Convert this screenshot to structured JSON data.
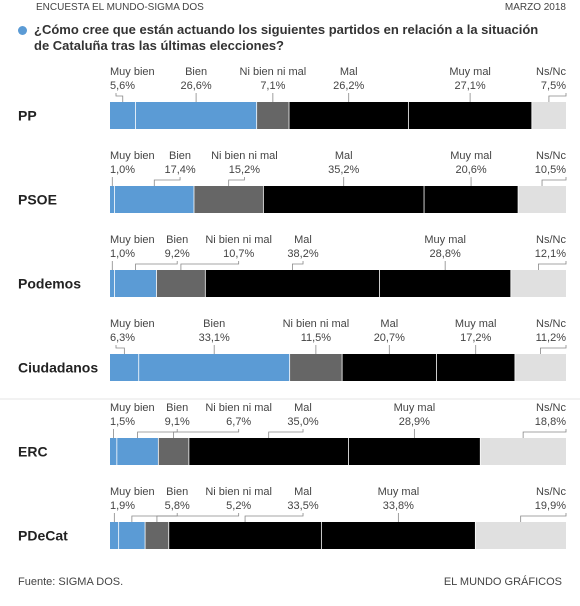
{
  "header": {
    "source_label": "ENCUESTA EL MUNDO-SIGMA DOS",
    "date": "MARZO 2018"
  },
  "question": {
    "line1": "¿Cómo cree que están actuando los siguientes partidos en relación a la situación",
    "line2": "de Cataluña tras las últimas elecciones?"
  },
  "footer": {
    "source": "Fuente: SIGMA DOS.",
    "credit": "EL MUNDO GRÁFICOS"
  },
  "colors": {
    "muy_bien": "#5b9bd5",
    "bien": "#5b9bd5",
    "ni_bien_ni_mal": "#666666",
    "mal": "#000000",
    "muy_mal": "#000000",
    "ns_nc": "#e0e0e0"
  },
  "chart_data": {
    "type": "bar",
    "stacked": true,
    "orientation": "horizontal",
    "categories": [
      "PP",
      "PSOE",
      "Podemos",
      "Ciudadanos",
      "ERC",
      "PDeCat"
    ],
    "series": [
      {
        "name": "Muy bien",
        "values": [
          5.6,
          1.0,
          1.0,
          6.3,
          1.5,
          1.9
        ],
        "labels": [
          "5,6%",
          "1,0%",
          "1,0%",
          "6,3%",
          "1,5%",
          "1,9%"
        ]
      },
      {
        "name": "Bien",
        "values": [
          26.6,
          17.4,
          9.2,
          33.1,
          9.1,
          5.8
        ],
        "labels": [
          "26,6%",
          "17,4%",
          "9,2%",
          "33,1%",
          "9,1%",
          "5,8%"
        ]
      },
      {
        "name": "Ni bien ni mal",
        "values": [
          7.1,
          15.2,
          10.7,
          11.5,
          6.7,
          5.2
        ],
        "labels": [
          "7,1%",
          "15,2%",
          "10,7%",
          "11,5%",
          "6,7%",
          "5,2%"
        ]
      },
      {
        "name": "Mal",
        "values": [
          26.2,
          35.2,
          38.2,
          20.7,
          35.0,
          33.5
        ],
        "labels": [
          "26,2%",
          "35,2%",
          "38,2%",
          "20,7%",
          "35,0%",
          "33,5%"
        ]
      },
      {
        "name": "Muy mal",
        "values": [
          27.1,
          20.6,
          28.8,
          17.2,
          28.9,
          33.8
        ],
        "labels": [
          "27,1%",
          "20,6%",
          "28,8%",
          "17,2%",
          "28,9%",
          "33,8%"
        ]
      },
      {
        "name": "Ns/Nc",
        "values": [
          7.5,
          10.5,
          12.1,
          11.2,
          18.8,
          19.9
        ],
        "labels": [
          "7,5%",
          "10,5%",
          "12,1%",
          "11,2%",
          "18,8%",
          "19,9%"
        ]
      }
    ],
    "xlim": [
      0,
      100
    ]
  }
}
